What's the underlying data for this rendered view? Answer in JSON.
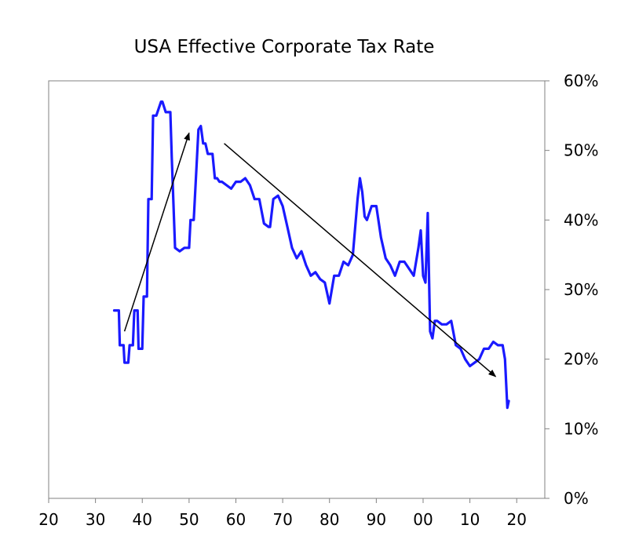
{
  "chart_data": {
    "type": "line",
    "title": "USA Effective Corporate Tax Rate",
    "xlabel": "",
    "ylabel": "",
    "xlim": [
      1920,
      2026
    ],
    "ylim": [
      0,
      60
    ],
    "x_ticks": [
      1920,
      1930,
      1940,
      1950,
      1960,
      1970,
      1980,
      1990,
      2000,
      2010,
      2020
    ],
    "x_tick_labels": [
      "20",
      "30",
      "40",
      "50",
      "60",
      "70",
      "80",
      "90",
      "00",
      "10",
      "20"
    ],
    "y_ticks": [
      0,
      10,
      20,
      30,
      40,
      50,
      60
    ],
    "y_tick_labels": [
      "0%",
      "10%",
      "20%",
      "30%",
      "40%",
      "50%",
      "60%"
    ],
    "y_axis_side": "right",
    "grid": false,
    "legend": "none",
    "colors": {
      "series": "#1a1aff",
      "arrows": "#000000",
      "axis": "#808080"
    },
    "series": [
      {
        "name": "Effective corporate tax rate",
        "x": [
          1934.0,
          1935.0,
          1935.2,
          1936.0,
          1936.2,
          1937.0,
          1937.3,
          1938.0,
          1938.3,
          1939.0,
          1939.2,
          1940.0,
          1940.3,
          1941.0,
          1941.3,
          1942.0,
          1942.3,
          1943.0,
          1944.0,
          1944.3,
          1945.0,
          1945.3,
          1946.0,
          1946.3,
          1947.0,
          1948.0,
          1949.0,
          1950.0,
          1950.3,
          1951.0,
          1952.0,
          1952.5,
          1953.0,
          1953.5,
          1954.0,
          1955.0,
          1955.5,
          1956.0,
          1956.5,
          1957.0,
          1958.0,
          1959.0,
          1960.0,
          1961.0,
          1962.0,
          1963.0,
          1964.0,
          1965.0,
          1966.0,
          1967.0,
          1967.3,
          1968.0,
          1969.0,
          1970.0,
          1971.0,
          1972.0,
          1973.0,
          1974.0,
          1975.0,
          1976.0,
          1977.0,
          1978.0,
          1979.0,
          1980.0,
          1981.0,
          1982.0,
          1983.0,
          1984.0,
          1985.0,
          1986.0,
          1986.5,
          1987.0,
          1987.5,
          1988.0,
          1989.0,
          1990.0,
          1991.0,
          1992.0,
          1993.0,
          1994.0,
          1995.0,
          1996.0,
          1997.0,
          1998.0,
          1999.0,
          1999.5,
          2000.0,
          2000.5,
          2001.0,
          2001.5,
          2002.0,
          2002.5,
          2003.0,
          2004.0,
          2005.0,
          2006.0,
          2007.0,
          2008.0,
          2009.0,
          2010.0,
          2011.0,
          2012.0,
          2013.0,
          2014.0,
          2015.0,
          2016.0,
          2017.0,
          2017.5,
          2018.0,
          2018.3
        ],
        "y": [
          27,
          27,
          22,
          22,
          19.5,
          19.5,
          22,
          22,
          27,
          27,
          21.5,
          21.5,
          29,
          29,
          43,
          43,
          55,
          55,
          57,
          57,
          55.5,
          55.5,
          55.5,
          49,
          36,
          35.5,
          36,
          36,
          40,
          40,
          53,
          53.5,
          51,
          51,
          49.5,
          49.5,
          46,
          46,
          45.5,
          45.5,
          45,
          44.5,
          45.5,
          45.5,
          46,
          45,
          43,
          43,
          39.5,
          39,
          39,
          43,
          43.5,
          42,
          39,
          36,
          34.5,
          35.5,
          33.5,
          32,
          32.5,
          31.5,
          31,
          28,
          32,
          32,
          34,
          33.5,
          35,
          43,
          46,
          44,
          40.5,
          40,
          42,
          42,
          37.5,
          34.5,
          33.5,
          32,
          34,
          34,
          33,
          32,
          36,
          38.5,
          32,
          31,
          41,
          24,
          23,
          25.5,
          25.5,
          25,
          25,
          25.5,
          22,
          21.5,
          20,
          19,
          19.5,
          20,
          21.5,
          21.5,
          22.5,
          22,
          22,
          20,
          13,
          14
        ]
      }
    ],
    "annotations": [
      {
        "type": "arrow",
        "from": [
          1936.2,
          24
        ],
        "to": [
          1950,
          52.5
        ]
      },
      {
        "type": "arrow",
        "from": [
          1957.5,
          51
        ],
        "to": [
          2015.5,
          17.5
        ]
      }
    ]
  }
}
